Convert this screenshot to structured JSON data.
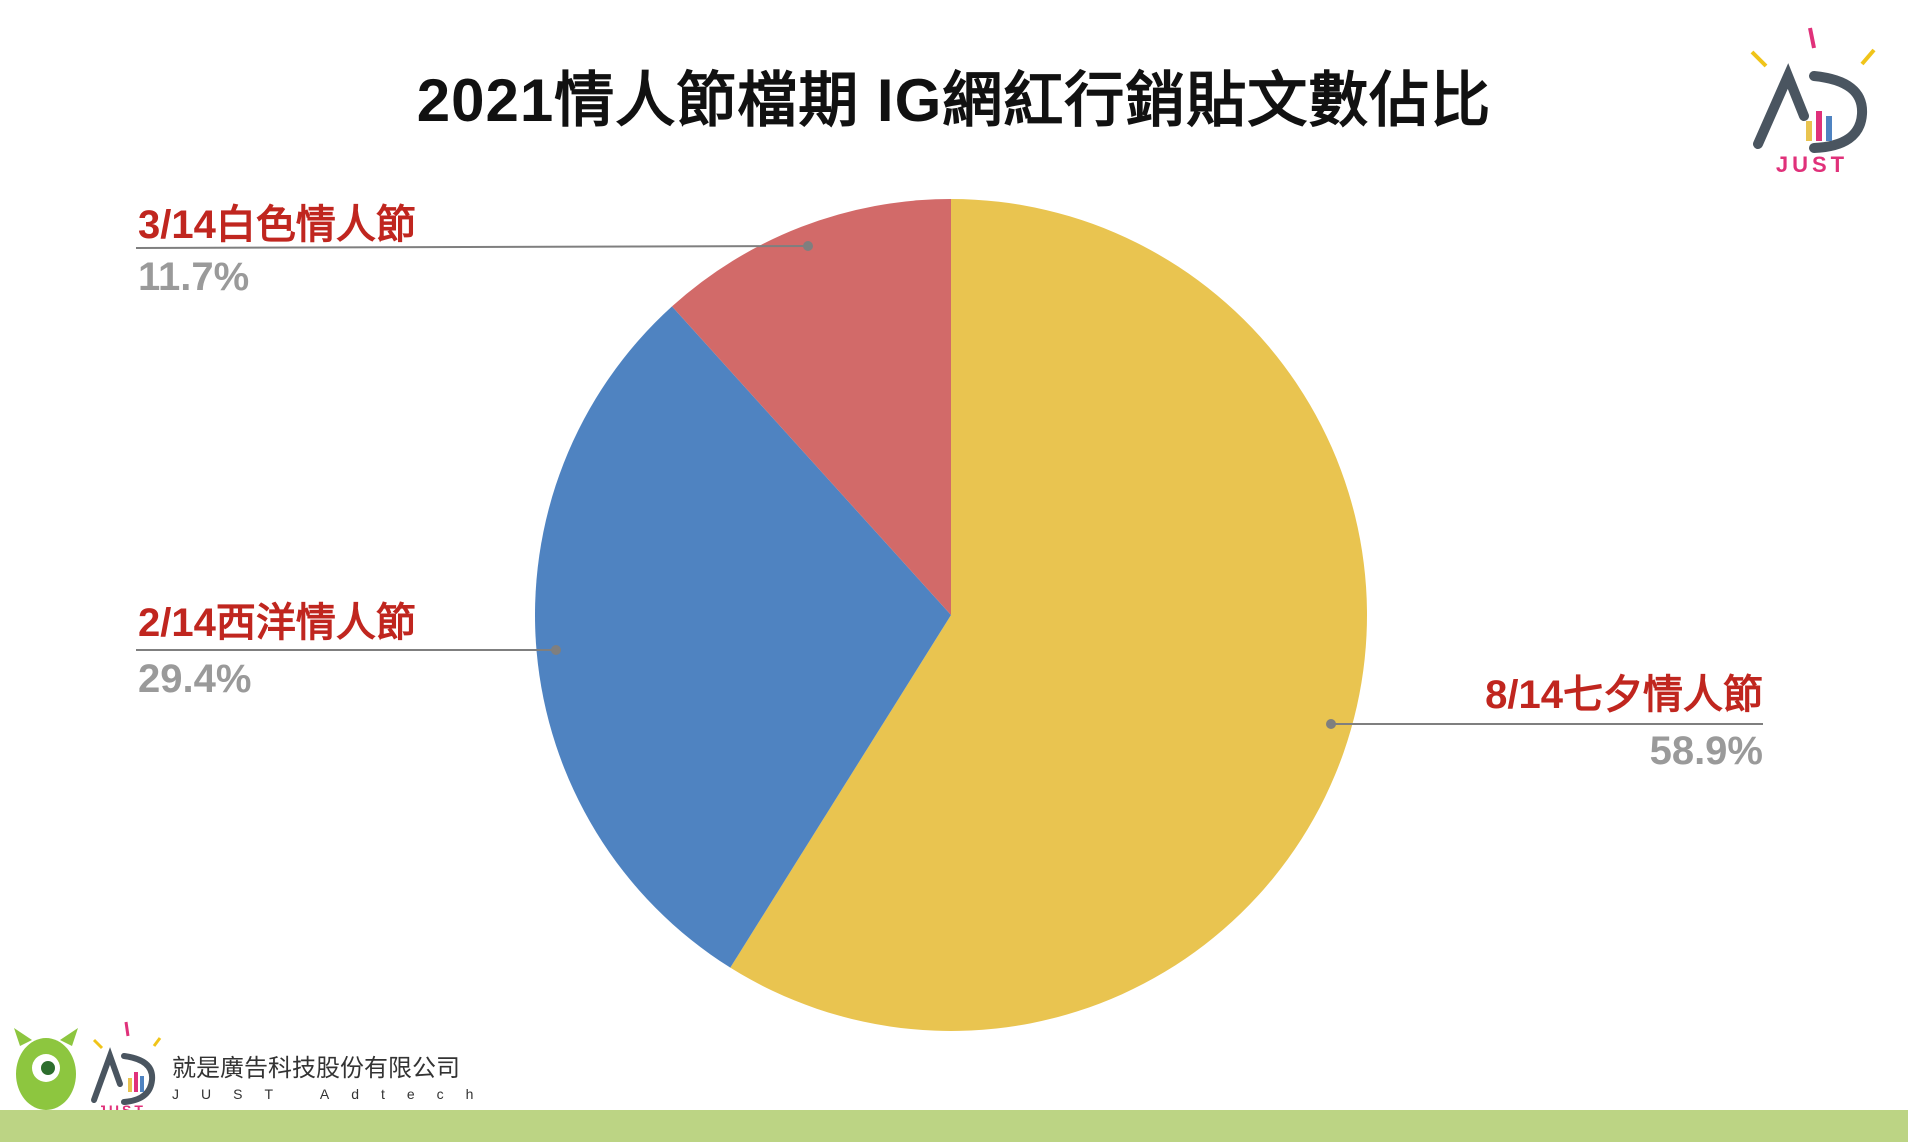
{
  "title": "2021情人節檔期 IG網紅行銷貼文數佔比",
  "colors": {
    "title": "#111111",
    "label_name": "#c0261f",
    "label_pct": "#9a9a9a",
    "leader": "#7f7f7f",
    "footer_bar": "#bcd484"
  },
  "chart_data": {
    "type": "pie",
    "title": "2021情人節檔期 IG網紅行銷貼文數佔比",
    "slices": [
      {
        "label": "8/14七夕情人節",
        "pct_label": "58.9%",
        "value": 58.9,
        "color": "#e9c450"
      },
      {
        "label": "2/14西洋情人節",
        "pct_label": "29.4%",
        "value": 29.4,
        "color": "#4f83c1"
      },
      {
        "label": "3/14白色情人節",
        "pct_label": "11.7%",
        "value": 11.7,
        "color": "#d26a69"
      }
    ],
    "start": "12 o'clock",
    "direction": "clockwise",
    "legend": "none"
  },
  "footer": {
    "company": "就是廣告科技股份有限公司",
    "company_en": "JUST Adtech",
    "logo_text": "JUST"
  }
}
